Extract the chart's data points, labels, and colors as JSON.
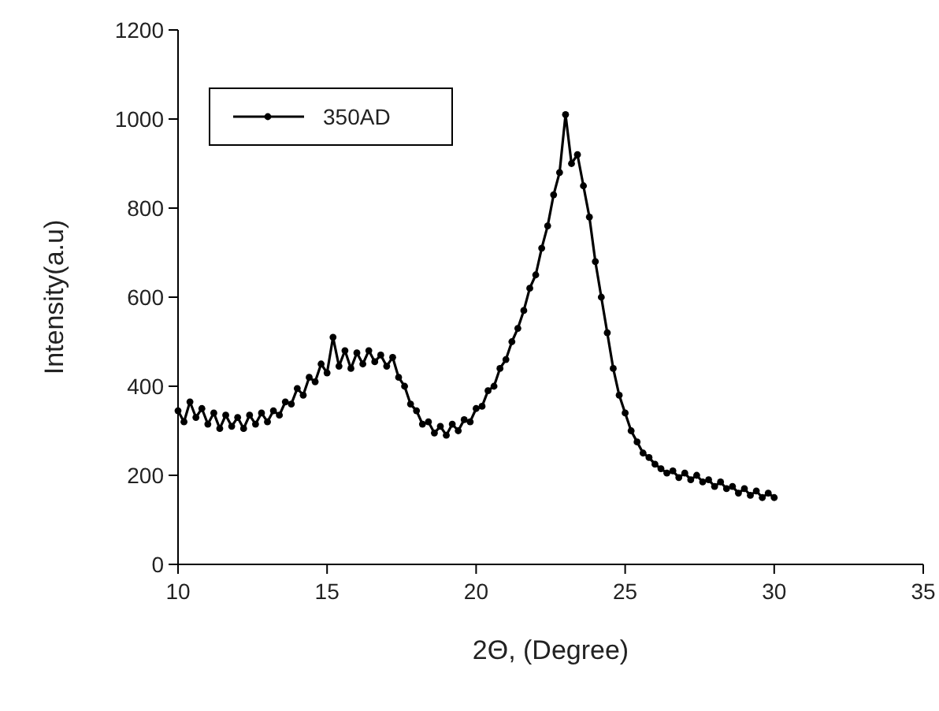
{
  "chart_data": {
    "type": "line",
    "xlabel": "2Θ, (Degree)",
    "ylabel": "Intensity(a.u)",
    "xlim": [
      10,
      35
    ],
    "xticks": [
      10,
      15,
      20,
      25,
      30,
      35
    ],
    "ylim": [
      0,
      1200
    ],
    "yticks": [
      0,
      200,
      400,
      600,
      800,
      1000,
      1200
    ],
    "grid": false,
    "legend": "top left",
    "marker": "circle",
    "line_style": "solid",
    "series": [
      {
        "name": "350AD",
        "color": "#000000",
        "x": [
          10,
          10.2,
          10.4,
          10.6,
          10.8,
          11,
          11.2,
          11.4,
          11.6,
          11.8,
          12,
          12.2,
          12.4,
          12.6,
          12.8,
          13,
          13.2,
          13.4,
          13.6,
          13.8,
          14,
          14.2,
          14.4,
          14.6,
          14.8,
          15,
          15.2,
          15.4,
          15.6,
          15.8,
          16,
          16.2,
          16.4,
          16.6,
          16.8,
          17,
          17.2,
          17.4,
          17.6,
          17.8,
          18,
          18.2,
          18.4,
          18.6,
          18.8,
          19,
          19.2,
          19.4,
          19.6,
          19.8,
          20,
          20.2,
          20.4,
          20.6,
          20.8,
          21,
          21.2,
          21.4,
          21.6,
          21.8,
          22,
          22.2,
          22.4,
          22.6,
          22.8,
          23,
          23.2,
          23.4,
          23.6,
          23.8,
          24,
          24.2,
          24.4,
          24.6,
          24.8,
          25,
          25.2,
          25.4,
          25.6,
          25.8,
          26,
          26.2,
          26.4,
          26.6,
          26.8,
          27,
          27.2,
          27.4,
          27.6,
          27.8,
          28,
          28.2,
          28.4,
          28.6,
          28.8,
          29,
          29.2,
          29.4,
          29.6,
          29.8,
          30
        ],
        "values": [
          345,
          320,
          365,
          330,
          350,
          315,
          340,
          305,
          335,
          310,
          330,
          305,
          335,
          315,
          340,
          320,
          345,
          335,
          365,
          360,
          395,
          380,
          420,
          410,
          450,
          430,
          510,
          445,
          480,
          440,
          475,
          450,
          480,
          455,
          470,
          445,
          465,
          420,
          400,
          360,
          345,
          315,
          320,
          295,
          310,
          290,
          315,
          300,
          325,
          320,
          350,
          355,
          390,
          400,
          440,
          460,
          500,
          530,
          570,
          620,
          650,
          710,
          760,
          830,
          880,
          1010,
          900,
          920,
          850,
          780,
          680,
          600,
          520,
          440,
          380,
          340,
          300,
          275,
          250,
          240,
          225,
          215,
          205,
          210,
          195,
          205,
          190,
          200,
          185,
          190,
          175,
          185,
          170,
          175,
          160,
          170,
          155,
          165,
          150,
          160,
          150
        ]
      }
    ]
  }
}
